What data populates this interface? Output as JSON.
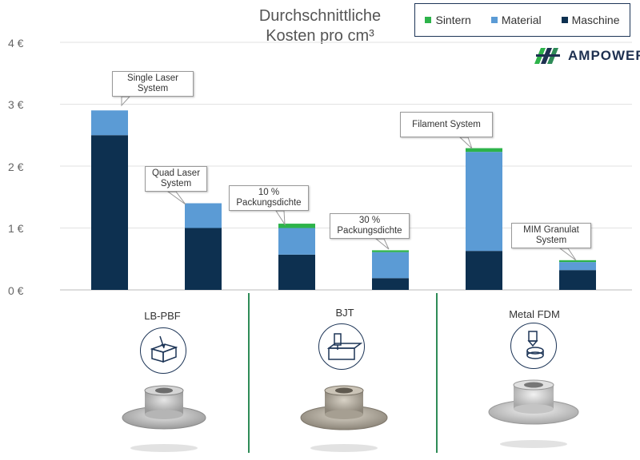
{
  "header": {
    "title_line1": "Durchschnittliche",
    "title_line2": "Kosten pro cm³"
  },
  "legend": [
    {
      "name": "Sintern",
      "color": "#2db34a"
    },
    {
      "name": "Material",
      "color": "#5b9bd5"
    },
    {
      "name": "Maschine",
      "color": "#0d3050"
    }
  ],
  "logo": {
    "text": "AMPOWER",
    "icon": "ampower-logo-icon"
  },
  "chart_data": {
    "type": "bar",
    "stacked": true,
    "ylim": [
      0,
      4
    ],
    "yticks": [
      "0 €",
      "1 €",
      "2 €",
      "3 €",
      "4 €"
    ],
    "grid": true,
    "legend_position": "top-right",
    "categories": [
      "Single Laser System",
      "Quad Laser System",
      "10 % Packungsdichte",
      "30 % Packungsdichte",
      "Filament System",
      "MIM Granulat System"
    ],
    "series": [
      {
        "name": "Maschine",
        "color": "#0d3050",
        "values": [
          2.5,
          1.0,
          0.57,
          0.19,
          0.63,
          0.32
        ]
      },
      {
        "name": "Material",
        "color": "#5b9bd5",
        "values": [
          0.4,
          0.4,
          0.43,
          0.42,
          1.6,
          0.13
        ]
      },
      {
        "name": "Sintern",
        "color": "#2db34a",
        "values": [
          0,
          0,
          0.07,
          0.03,
          0.06,
          0.03
        ]
      }
    ],
    "annotations": [
      {
        "line1": "Single Laser",
        "line2": "System"
      },
      {
        "line1": "Quad Laser",
        "line2": "System"
      },
      {
        "line1": "10 %",
        "line2": "Packungsdichte"
      },
      {
        "line1": "30 %",
        "line2": "Packungsdichte"
      },
      {
        "line1": "Filament System",
        "line2": ""
      },
      {
        "line1": "MIM Granulat",
        "line2": "System"
      }
    ]
  },
  "groups": [
    {
      "label": "LB-PBF",
      "icon": "laser-powder-bed-icon"
    },
    {
      "label": "BJT",
      "icon": "binder-jetting-icon"
    },
    {
      "label": "Metal FDM",
      "icon": "metal-fdm-nozzle-icon"
    }
  ]
}
